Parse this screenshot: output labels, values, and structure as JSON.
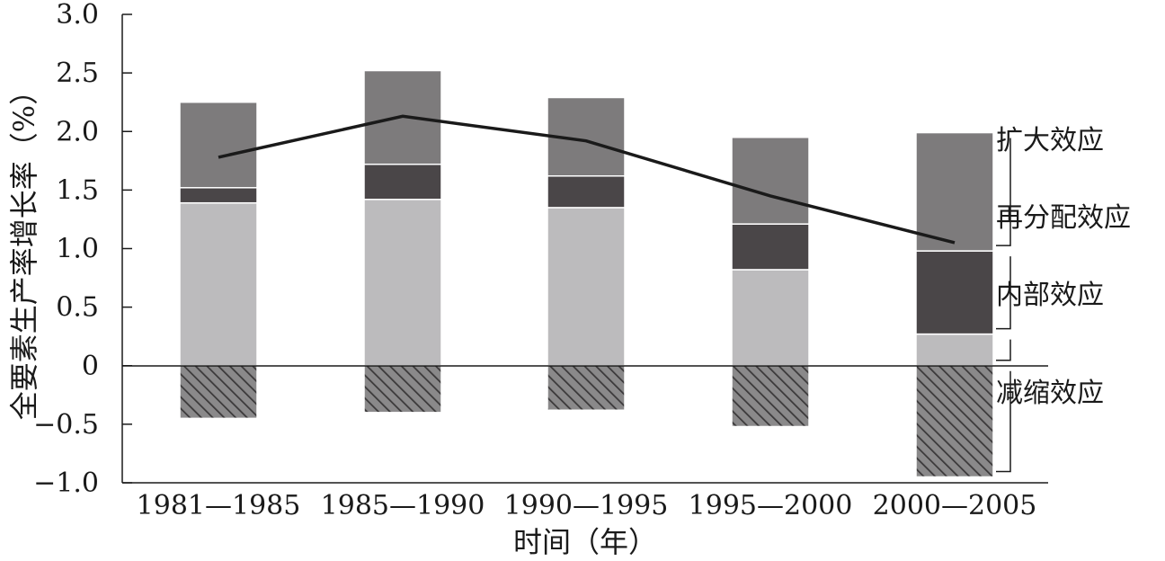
{
  "chart_data": {
    "type": "bar",
    "stacked": true,
    "categories": [
      "1981—1985",
      "1985—1990",
      "1990—1995",
      "1995—2000",
      "2000—2005"
    ],
    "xlabel": "时间（年）",
    "ylabel": "全要素生产率增长率（%）",
    "ylim": [
      -1.0,
      3.0
    ],
    "yticks": [
      "3.0",
      "2.5",
      "2.0",
      "1.5",
      "1.0",
      "0.5",
      "0",
      "−0.5",
      "−1.0"
    ],
    "grid": false,
    "legend_placement": "right",
    "series": [
      {
        "name": "内部效应",
        "values": [
          1.39,
          1.42,
          1.35,
          0.82,
          0.27
        ],
        "color": "#bcbbbd"
      },
      {
        "name": "再分配效应",
        "values": [
          0.13,
          0.3,
          0.27,
          0.39,
          0.71
        ],
        "color": "#4a4648"
      },
      {
        "name": "扩大效应",
        "values": [
          0.73,
          0.8,
          0.67,
          0.74,
          1.01
        ],
        "color": "#7d7b7c"
      },
      {
        "name": "减缩效应",
        "values": [
          -0.45,
          -0.4,
          -0.38,
          -0.52,
          -0.95
        ],
        "color": "#777677",
        "pattern": "hatched"
      }
    ],
    "line": {
      "values": [
        1.78,
        2.13,
        1.92,
        1.45,
        1.05
      ],
      "color": "#1a1a1a"
    }
  }
}
